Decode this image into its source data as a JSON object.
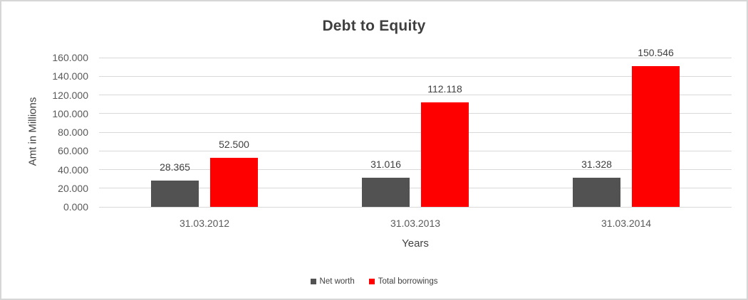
{
  "chart_data": {
    "type": "bar",
    "title": "Debt to Equity",
    "xlabel": "Years",
    "ylabel": "Amt in Millions",
    "categories": [
      "31.03.2012",
      "31.03.2013",
      "31.03.2014"
    ],
    "series": [
      {
        "name": "Net worth",
        "color": "#525252",
        "values": [
          28.365,
          31.016,
          31.328
        ],
        "value_labels": [
          "28.365",
          "31.016",
          "31.328"
        ]
      },
      {
        "name": "Total borrowings",
        "color": "#ff0000",
        "values": [
          52.5,
          112.118,
          150.546
        ],
        "value_labels": [
          "52.500",
          "112.118",
          "150.546"
        ]
      }
    ],
    "ylim": [
      0,
      160
    ],
    "ytick_step": 20,
    "ytick_labels": [
      "0.000",
      "20.000",
      "40.000",
      "60.000",
      "80.000",
      "100.000",
      "120.000",
      "140.000",
      "160.000"
    ],
    "grid": true,
    "legend_position": "bottom",
    "colors": {
      "gridline": "#d9d9d9",
      "axis_text": "#595959",
      "label_text": "#404040",
      "title_text": "#3f3f3f",
      "frame_border": "#d6d6d6"
    }
  }
}
